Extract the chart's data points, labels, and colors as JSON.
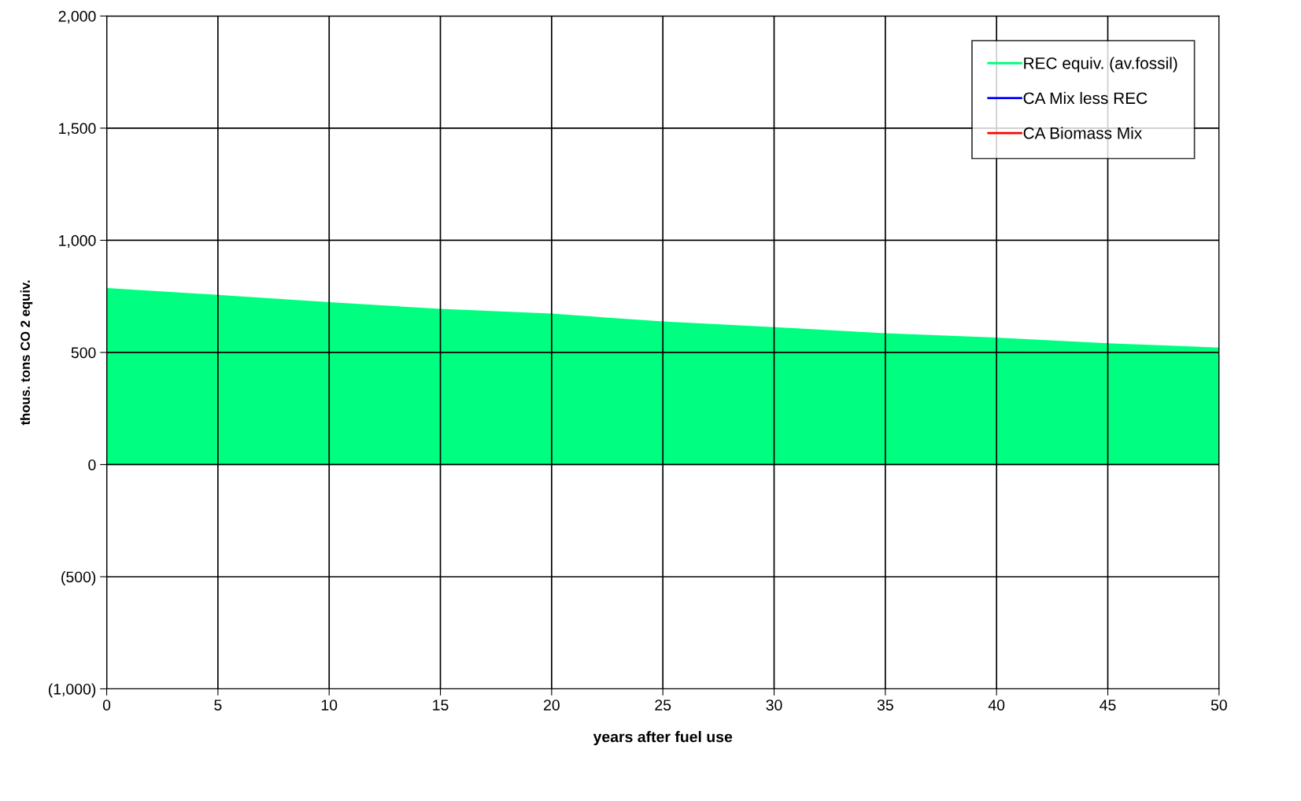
{
  "chart_data": {
    "type": "area",
    "xlabel": "years after fuel use",
    "ylabel": "thous. tons CO 2 equiv.",
    "x": [
      0,
      5,
      10,
      15,
      20,
      25,
      30,
      35,
      40,
      45,
      50
    ],
    "series": [
      {
        "name": "REC equiv. (av.fossil)",
        "color": "#00ff80",
        "values": [
          787,
          757,
          724,
          694,
          673,
          638,
          613,
          586,
          566,
          541,
          522
        ]
      },
      {
        "name": "CA Mix less REC",
        "color": "#0000ff",
        "type": "line",
        "values": [
          null,
          null,
          null,
          null,
          null,
          null,
          null,
          null,
          null,
          null,
          null
        ]
      },
      {
        "name": "CA Biomass Mix",
        "color": "#ff0000",
        "type": "line",
        "values": [
          null,
          null,
          null,
          null,
          null,
          null,
          null,
          null,
          null,
          null,
          null
        ]
      }
    ],
    "xlim": [
      0,
      50
    ],
    "xticks": [
      0,
      5,
      10,
      15,
      20,
      25,
      30,
      35,
      40,
      45,
      50
    ],
    "ylim": [
      -1000,
      2000
    ],
    "yticks": [
      {
        "value": -1000,
        "label": "(1,000)"
      },
      {
        "value": -500,
        "label": "(500)"
      },
      0,
      {
        "value": 500,
        "label": "500"
      },
      {
        "value": 1000,
        "label": "1,000"
      },
      {
        "value": 1500,
        "label": "1,500"
      },
      {
        "value": 2000,
        "label": "2,000"
      }
    ],
    "grid": true,
    "legend": "top right"
  }
}
